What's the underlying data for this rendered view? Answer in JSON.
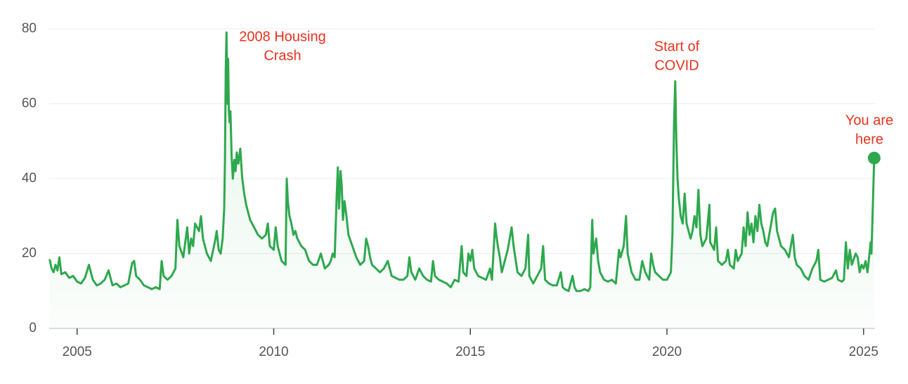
{
  "chart_data": {
    "type": "line",
    "color": "#2ea84e",
    "grid": true,
    "xlim": [
      2004.29,
      2025.29
    ],
    "ylim": [
      0,
      80
    ],
    "xticks": [
      2005,
      2010,
      2015,
      2020,
      2025
    ],
    "yticks": [
      0,
      20,
      40,
      60,
      80
    ],
    "annotations": [
      [
        "2008 Housing",
        "Crash"
      ],
      [
        "Start of",
        "COVID"
      ],
      [
        "You are",
        "here"
      ]
    ],
    "x": [
      2004.3,
      2004.35,
      2004.4,
      2004.45,
      2004.5,
      2004.55,
      2004.6,
      2004.7,
      2004.8,
      2004.9,
      2005.0,
      2005.1,
      2005.2,
      2005.3,
      2005.4,
      2005.5,
      2005.6,
      2005.7,
      2005.8,
      2005.9,
      2006.0,
      2006.1,
      2006.2,
      2006.3,
      2006.4,
      2006.45,
      2006.5,
      2006.6,
      2006.7,
      2006.8,
      2006.9,
      2007.0,
      2007.1,
      2007.15,
      2007.2,
      2007.3,
      2007.4,
      2007.5,
      2007.55,
      2007.6,
      2007.7,
      2007.8,
      2007.85,
      2007.9,
      2007.95,
      2008.0,
      2008.1,
      2008.15,
      2008.2,
      2008.3,
      2008.4,
      2008.5,
      2008.55,
      2008.6,
      2008.65,
      2008.7,
      2008.74,
      2008.76,
      2008.78,
      2008.8,
      2008.82,
      2008.84,
      2008.86,
      2008.88,
      2008.9,
      2008.93,
      2008.96,
      2009.0,
      2009.03,
      2009.06,
      2009.1,
      2009.15,
      2009.2,
      2009.25,
      2009.3,
      2009.35,
      2009.4,
      2009.5,
      2009.6,
      2009.7,
      2009.8,
      2009.85,
      2009.9,
      2010.0,
      2010.05,
      2010.1,
      2010.2,
      2010.3,
      2010.33,
      2010.36,
      2010.4,
      2010.45,
      2010.5,
      2010.55,
      2010.6,
      2010.7,
      2010.8,
      2010.9,
      2011.0,
      2011.1,
      2011.2,
      2011.3,
      2011.4,
      2011.45,
      2011.5,
      2011.55,
      2011.6,
      2011.63,
      2011.66,
      2011.7,
      2011.73,
      2011.76,
      2011.8,
      2011.85,
      2011.9,
      2012.0,
      2012.1,
      2012.2,
      2012.3,
      2012.35,
      2012.4,
      2012.45,
      2012.5,
      2012.6,
      2012.7,
      2012.8,
      2012.9,
      2013.0,
      2013.1,
      2013.2,
      2013.3,
      2013.4,
      2013.45,
      2013.5,
      2013.6,
      2013.7,
      2013.8,
      2013.9,
      2014.0,
      2014.05,
      2014.1,
      2014.2,
      2014.3,
      2014.4,
      2014.5,
      2014.6,
      2014.7,
      2014.78,
      2014.82,
      2014.9,
      2014.95,
      2015.0,
      2015.05,
      2015.1,
      2015.2,
      2015.3,
      2015.4,
      2015.5,
      2015.55,
      2015.63,
      2015.66,
      2015.7,
      2015.75,
      2015.8,
      2015.85,
      2015.95,
      2016.0,
      2016.05,
      2016.1,
      2016.2,
      2016.3,
      2016.4,
      2016.47,
      2016.5,
      2016.6,
      2016.7,
      2016.8,
      2016.85,
      2016.9,
      2017.0,
      2017.1,
      2017.2,
      2017.3,
      2017.35,
      2017.4,
      2017.5,
      2017.6,
      2017.65,
      2017.7,
      2017.8,
      2017.9,
      2018.0,
      2018.05,
      2018.1,
      2018.13,
      2018.2,
      2018.25,
      2018.3,
      2018.4,
      2018.5,
      2018.6,
      2018.7,
      2018.78,
      2018.82,
      2018.9,
      2018.96,
      2019.0,
      2019.1,
      2019.2,
      2019.3,
      2019.37,
      2019.45,
      2019.55,
      2019.6,
      2019.65,
      2019.7,
      2019.8,
      2019.9,
      2020.0,
      2020.1,
      2020.14,
      2020.18,
      2020.21,
      2020.24,
      2020.27,
      2020.3,
      2020.35,
      2020.4,
      2020.45,
      2020.5,
      2020.6,
      2020.65,
      2020.7,
      2020.75,
      2020.8,
      2020.85,
      2020.9,
      2020.95,
      2021.0,
      2021.08,
      2021.1,
      2021.2,
      2021.25,
      2021.3,
      2021.4,
      2021.5,
      2021.55,
      2021.6,
      2021.7,
      2021.75,
      2021.8,
      2021.9,
      2021.95,
      2022.0,
      2022.05,
      2022.1,
      2022.15,
      2022.2,
      2022.25,
      2022.3,
      2022.35,
      2022.4,
      2022.45,
      2022.5,
      2022.55,
      2022.6,
      2022.7,
      2022.75,
      2022.8,
      2022.9,
      2023.0,
      2023.1,
      2023.2,
      2023.25,
      2023.3,
      2023.4,
      2023.5,
      2023.6,
      2023.7,
      2023.8,
      2023.85,
      2023.9,
      2024.0,
      2024.1,
      2024.2,
      2024.3,
      2024.35,
      2024.45,
      2024.5,
      2024.55,
      2024.6,
      2024.65,
      2024.7,
      2024.8,
      2024.85,
      2024.9,
      2024.95,
      2025.0,
      2025.05,
      2025.1,
      2025.15,
      2025.18,
      2025.2,
      2025.27
    ],
    "values": [
      18.5,
      16,
      15,
      17,
      15.5,
      19,
      14.5,
      15,
      13.5,
      14,
      12.5,
      12,
      13.5,
      17,
      13,
      11.5,
      12,
      13,
      15.5,
      11.5,
      12,
      11,
      11.5,
      12,
      17.5,
      18,
      14,
      13,
      11.5,
      11,
      10.5,
      11,
      10.5,
      18,
      14,
      13,
      14,
      16,
      29,
      22,
      19,
      27,
      20,
      24,
      22,
      28,
      26,
      30,
      24,
      20,
      18,
      23,
      26,
      21,
      20,
      24,
      32,
      45,
      69,
      79,
      60,
      72,
      58,
      55,
      58,
      46,
      40,
      45,
      42,
      47,
      44,
      48,
      40,
      36,
      33,
      31,
      29,
      27,
      25,
      24,
      25,
      28,
      22,
      21,
      27,
      22,
      18,
      17,
      40,
      34,
      30,
      28,
      25,
      26,
      24,
      22,
      21,
      18,
      17,
      17,
      20,
      16,
      17,
      18,
      20,
      19,
      35,
      43,
      32,
      42,
      38,
      29,
      34,
      30,
      25,
      22,
      19,
      17,
      18,
      24,
      22,
      19,
      17,
      16,
      15,
      16,
      18,
      14,
      13.5,
      13,
      13,
      14,
      19,
      15,
      13,
      16,
      14,
      13,
      12.5,
      18,
      14,
      13,
      12.5,
      12,
      11,
      13,
      12.5,
      22,
      15,
      14,
      20,
      18,
      21,
      16,
      14,
      13.5,
      13,
      16,
      13,
      28,
      25,
      22,
      19,
      15,
      17,
      21,
      24,
      27,
      22,
      15,
      14,
      16,
      25,
      14,
      12,
      14,
      16,
      22,
      13,
      12,
      11.5,
      11.5,
      15,
      11,
      10.5,
      10,
      14,
      11,
      10,
      10,
      10.5,
      10,
      11,
      29,
      20,
      24,
      18,
      15,
      13,
      12.5,
      13,
      12,
      21,
      19,
      22,
      30,
      20,
      15,
      13,
      13,
      18,
      15,
      13,
      20,
      17,
      15,
      14,
      13,
      13,
      15,
      25,
      55,
      66,
      50,
      40,
      35,
      30,
      28,
      36,
      28,
      24,
      26,
      30,
      27,
      37,
      25,
      22,
      23,
      24,
      33,
      23,
      21,
      27,
      18,
      17,
      18,
      21,
      17,
      16,
      21,
      18,
      20,
      27,
      22,
      31,
      25,
      28,
      23,
      30,
      26,
      33,
      28,
      26,
      23,
      22,
      25,
      31,
      32,
      26,
      22,
      21,
      19,
      25,
      19,
      17,
      16,
      14,
      13,
      16,
      18,
      21,
      13,
      12.5,
      13,
      13.5,
      15.5,
      13,
      12.5,
      13,
      23,
      16,
      21,
      17,
      20,
      19,
      15,
      17,
      16,
      18,
      15,
      20,
      23,
      20,
      45.5
    ]
  }
}
